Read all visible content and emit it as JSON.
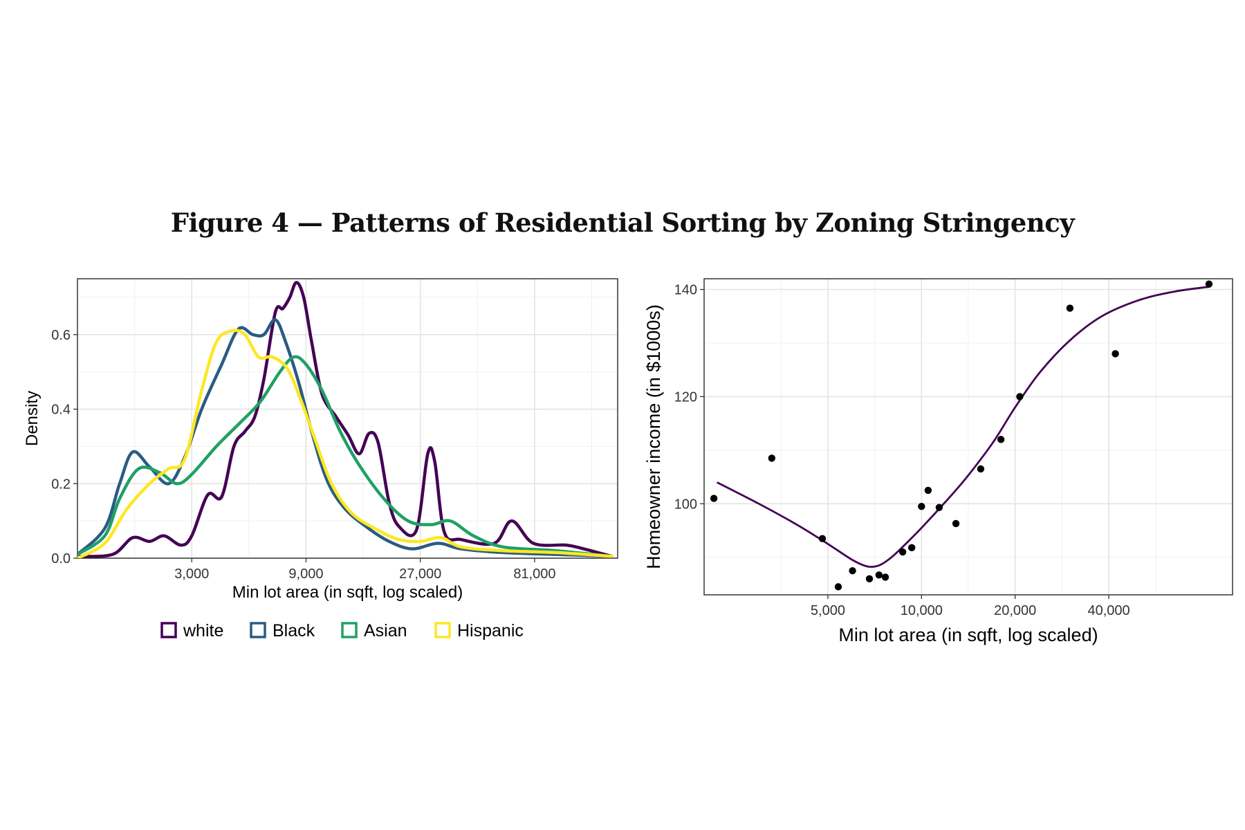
{
  "figure_title": "Figure 4 — Patterns of Residential Sorting by Zoning Stringency",
  "chart_data": [
    {
      "type": "line",
      "subtype": "density",
      "xlabel": "Min lot area (in sqft, log scaled)",
      "ylabel": "Density",
      "x_scale": "log",
      "xlim": [
        1000,
        180000
      ],
      "ylim": [
        0,
        0.75
      ],
      "x_ticks": [
        3000,
        9000,
        27000,
        81000
      ],
      "x_tick_labels": [
        "3,000",
        "9,000",
        "27,000",
        "81,000"
      ],
      "y_ticks": [
        0.0,
        0.2,
        0.4,
        0.6
      ],
      "y_tick_labels": [
        "0.0",
        "0.2",
        "0.4",
        "0.6"
      ],
      "grid": true,
      "legend_position": "bottom",
      "series": [
        {
          "name": "white",
          "color": "#440154",
          "points": [
            [
              1000,
              0.005
            ],
            [
              1400,
              0.01
            ],
            [
              1700,
              0.055
            ],
            [
              2000,
              0.045
            ],
            [
              2300,
              0.06
            ],
            [
              2700,
              0.035
            ],
            [
              3000,
              0.06
            ],
            [
              3500,
              0.17
            ],
            [
              4000,
              0.165
            ],
            [
              4500,
              0.3
            ],
            [
              5000,
              0.34
            ],
            [
              5500,
              0.38
            ],
            [
              6000,
              0.48
            ],
            [
              6700,
              0.66
            ],
            [
              7200,
              0.67
            ],
            [
              7700,
              0.7
            ],
            [
              8200,
              0.74
            ],
            [
              8800,
              0.7
            ],
            [
              9500,
              0.58
            ],
            [
              10500,
              0.44
            ],
            [
              12000,
              0.38
            ],
            [
              13500,
              0.33
            ],
            [
              15000,
              0.28
            ],
            [
              16500,
              0.335
            ],
            [
              18000,
              0.31
            ],
            [
              20000,
              0.15
            ],
            [
              22000,
              0.085
            ],
            [
              26000,
              0.075
            ],
            [
              29000,
              0.28
            ],
            [
              31000,
              0.26
            ],
            [
              34000,
              0.07
            ],
            [
              40000,
              0.05
            ],
            [
              55000,
              0.04
            ],
            [
              65000,
              0.1
            ],
            [
              80000,
              0.04
            ],
            [
              110000,
              0.035
            ],
            [
              130000,
              0.025
            ],
            [
              170000,
              0.005
            ]
          ]
        },
        {
          "name": "Black",
          "color": "#2a5b82",
          "points": [
            [
              1000,
              0.01
            ],
            [
              1300,
              0.08
            ],
            [
              1500,
              0.2
            ],
            [
              1700,
              0.285
            ],
            [
              2000,
              0.245
            ],
            [
              2400,
              0.2
            ],
            [
              2800,
              0.27
            ],
            [
              3300,
              0.4
            ],
            [
              4000,
              0.52
            ],
            [
              4700,
              0.615
            ],
            [
              5400,
              0.6
            ],
            [
              6000,
              0.6
            ],
            [
              6700,
              0.64
            ],
            [
              7400,
              0.58
            ],
            [
              8400,
              0.47
            ],
            [
              9500,
              0.34
            ],
            [
              11000,
              0.21
            ],
            [
              13000,
              0.135
            ],
            [
              16000,
              0.085
            ],
            [
              20000,
              0.045
            ],
            [
              25000,
              0.025
            ],
            [
              32000,
              0.04
            ],
            [
              40000,
              0.025
            ],
            [
              60000,
              0.015
            ],
            [
              100000,
              0.01
            ],
            [
              170000,
              0.005
            ]
          ]
        },
        {
          "name": "Asian",
          "color": "#1fa065",
          "points": [
            [
              1000,
              0.01
            ],
            [
              1300,
              0.06
            ],
            [
              1500,
              0.16
            ],
            [
              1800,
              0.24
            ],
            [
              2200,
              0.23
            ],
            [
              2600,
              0.2
            ],
            [
              3000,
              0.225
            ],
            [
              3800,
              0.3
            ],
            [
              4800,
              0.365
            ],
            [
              5800,
              0.42
            ],
            [
              7000,
              0.5
            ],
            [
              8000,
              0.54
            ],
            [
              9000,
              0.52
            ],
            [
              10500,
              0.45
            ],
            [
              12500,
              0.34
            ],
            [
              15000,
              0.25
            ],
            [
              19000,
              0.16
            ],
            [
              24000,
              0.1
            ],
            [
              30000,
              0.09
            ],
            [
              36000,
              0.1
            ],
            [
              45000,
              0.06
            ],
            [
              60000,
              0.03
            ],
            [
              100000,
              0.02
            ],
            [
              170000,
              0.005
            ]
          ]
        },
        {
          "name": "Hispanic",
          "color": "#fde725",
          "points": [
            [
              1000,
              0.0
            ],
            [
              1300,
              0.04
            ],
            [
              1600,
              0.13
            ],
            [
              2000,
              0.2
            ],
            [
              2400,
              0.24
            ],
            [
              2800,
              0.265
            ],
            [
              3300,
              0.45
            ],
            [
              3800,
              0.58
            ],
            [
              4400,
              0.61
            ],
            [
              5000,
              0.6
            ],
            [
              5700,
              0.54
            ],
            [
              6500,
              0.54
            ],
            [
              7500,
              0.51
            ],
            [
              8500,
              0.43
            ],
            [
              9800,
              0.32
            ],
            [
              11500,
              0.2
            ],
            [
              14000,
              0.12
            ],
            [
              18000,
              0.075
            ],
            [
              22000,
              0.05
            ],
            [
              27000,
              0.045
            ],
            [
              33000,
              0.055
            ],
            [
              40000,
              0.03
            ],
            [
              60000,
              0.02
            ],
            [
              100000,
              0.015
            ],
            [
              170000,
              0.005
            ]
          ]
        }
      ]
    },
    {
      "type": "scatter",
      "xlabel": "Min lot area (in sqft, log scaled)",
      "ylabel": "Homeowner income (in $1000s)",
      "x_scale": "log",
      "xlim": [
        2000,
        100000
      ],
      "ylim": [
        83,
        142
      ],
      "x_ticks": [
        5000,
        10000,
        20000,
        40000
      ],
      "x_tick_labels": [
        "5,000",
        "10,000",
        "20,000",
        "40,000"
      ],
      "y_ticks": [
        100,
        120,
        140
      ],
      "y_tick_labels": [
        "100",
        "120",
        "140"
      ],
      "grid": true,
      "points": [
        [
          2150,
          101
        ],
        [
          3300,
          108.5
        ],
        [
          4800,
          93.5
        ],
        [
          5400,
          84.5
        ],
        [
          6000,
          87.5
        ],
        [
          6800,
          86
        ],
        [
          7300,
          86.7
        ],
        [
          7650,
          86.3
        ],
        [
          8700,
          91
        ],
        [
          9300,
          91.8
        ],
        [
          10000,
          99.5
        ],
        [
          10500,
          102.5
        ],
        [
          11400,
          99.3
        ],
        [
          12900,
          96.3
        ],
        [
          15500,
          106.5
        ],
        [
          18000,
          112
        ],
        [
          20700,
          120
        ],
        [
          30000,
          136.5
        ],
        [
          42000,
          128
        ],
        [
          84000,
          141
        ]
      ],
      "smooth": {
        "color": "#440154",
        "points": [
          [
            2200,
            104
          ],
          [
            3000,
            100
          ],
          [
            4000,
            96
          ],
          [
            5000,
            92.5
          ],
          [
            6000,
            89.5
          ],
          [
            6700,
            88.3
          ],
          [
            7300,
            88.5
          ],
          [
            8000,
            90
          ],
          [
            9000,
            92.8
          ],
          [
            10000,
            95.5
          ],
          [
            12000,
            100.5
          ],
          [
            14000,
            105
          ],
          [
            17000,
            111.5
          ],
          [
            20000,
            118
          ],
          [
            24000,
            124.5
          ],
          [
            30000,
            130.5
          ],
          [
            38000,
            135
          ],
          [
            50000,
            138
          ],
          [
            65000,
            139.6
          ],
          [
            84000,
            140.5
          ]
        ]
      }
    }
  ]
}
